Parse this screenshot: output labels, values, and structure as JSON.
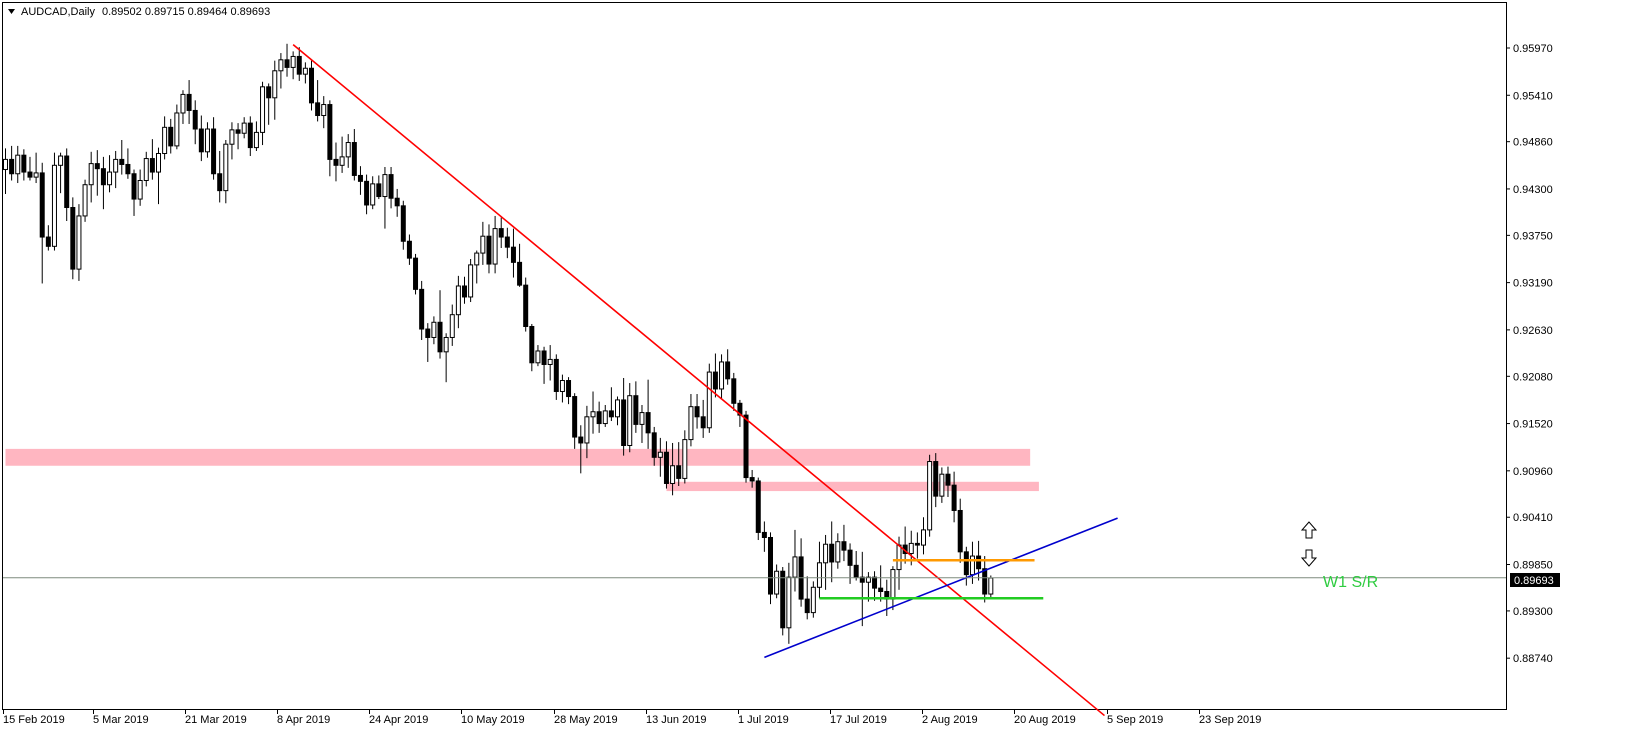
{
  "header": {
    "symbol": "AUDCAD,Daily",
    "ohlc": "0.89502 0.89715 0.89464 0.89693"
  },
  "current_price": "0.89693",
  "annotation": "W1 S/R",
  "colors": {
    "bull": "#ffffff",
    "bear": "#000000",
    "trendline_down": "#ff0000",
    "trendline_up": "#0000cc",
    "zone": "#ffb6c1",
    "level_orange": "#ff9900",
    "level_green": "#22cc22",
    "bid_line": "#7f8c7f"
  },
  "chart_data": {
    "type": "candlestick",
    "title": "AUDCAD,Daily",
    "ylim": [
      0.8857,
      0.9625
    ],
    "y_ticks": [
      "0.95970",
      "0.95410",
      "0.94860",
      "0.94300",
      "0.93750",
      "0.93190",
      "0.92630",
      "0.92080",
      "0.91520",
      "0.90960",
      "0.90410",
      "0.89850",
      "0.89300",
      "0.88740"
    ],
    "x_ticks": [
      "15 Feb 2019",
      "5 Mar 2019",
      "21 Mar 2019",
      "8 Apr 2019",
      "24 Apr 2019",
      "10 May 2019",
      "28 May 2019",
      "13 Jun 2019",
      "1 Jul 2019",
      "17 Jul 2019",
      "2 Aug 2019",
      "20 Aug 2019",
      "5 Sep 2019",
      "23 Sep 2019"
    ],
    "candles": [
      [
        "2019-02-13",
        0.9453,
        0.9478,
        0.9424,
        0.9465
      ],
      [
        "2019-02-14",
        0.9465,
        0.9481,
        0.944,
        0.9448
      ],
      [
        "2019-02-15",
        0.9448,
        0.9481,
        0.9437,
        0.947
      ],
      [
        "2019-02-18",
        0.947,
        0.9477,
        0.944,
        0.945
      ],
      [
        "2019-02-19",
        0.945,
        0.9468,
        0.944,
        0.9444
      ],
      [
        "2019-02-20",
        0.9444,
        0.9473,
        0.9437,
        0.9449
      ],
      [
        "2019-02-21",
        0.9449,
        0.9461,
        0.9318,
        0.9373
      ],
      [
        "2019-02-22",
        0.9373,
        0.9387,
        0.9357,
        0.9362
      ],
      [
        "2019-02-25",
        0.9362,
        0.9473,
        0.9357,
        0.9458
      ],
      [
        "2019-02-26",
        0.9458,
        0.9473,
        0.9425,
        0.9469
      ],
      [
        "2019-02-27",
        0.9469,
        0.9478,
        0.9392,
        0.9408
      ],
      [
        "2019-02-28",
        0.9408,
        0.942,
        0.9323,
        0.9335
      ],
      [
        "2019-03-01",
        0.9335,
        0.9412,
        0.9321,
        0.9398
      ],
      [
        "2019-03-04",
        0.9398,
        0.9441,
        0.9391,
        0.9435
      ],
      [
        "2019-03-05",
        0.9435,
        0.9474,
        0.9414,
        0.946
      ],
      [
        "2019-03-06",
        0.946,
        0.9476,
        0.9422,
        0.9454
      ],
      [
        "2019-03-07",
        0.9454,
        0.9468,
        0.9406,
        0.9435
      ],
      [
        "2019-03-08",
        0.9435,
        0.947,
        0.9426,
        0.945
      ],
      [
        "2019-03-11",
        0.945,
        0.9475,
        0.9431,
        0.9465
      ],
      [
        "2019-03-12",
        0.9465,
        0.9488,
        0.9447,
        0.9459
      ],
      [
        "2019-03-13",
        0.9459,
        0.9478,
        0.9442,
        0.9448
      ],
      [
        "2019-03-14",
        0.9448,
        0.9453,
        0.9398,
        0.9418
      ],
      [
        "2019-03-15",
        0.9418,
        0.9453,
        0.941,
        0.944
      ],
      [
        "2019-03-18",
        0.944,
        0.9474,
        0.9433,
        0.9466
      ],
      [
        "2019-03-19",
        0.9466,
        0.9489,
        0.9441,
        0.945
      ],
      [
        "2019-03-20",
        0.945,
        0.9479,
        0.9412,
        0.9472
      ],
      [
        "2019-03-21",
        0.9472,
        0.9516,
        0.9465,
        0.9503
      ],
      [
        "2019-03-22",
        0.9503,
        0.9513,
        0.9472,
        0.9481
      ],
      [
        "2019-03-25",
        0.9481,
        0.953,
        0.9477,
        0.952
      ],
      [
        "2019-03-26",
        0.952,
        0.9547,
        0.9507,
        0.9542
      ],
      [
        "2019-03-27",
        0.9542,
        0.9559,
        0.9507,
        0.9523
      ],
      [
        "2019-03-28",
        0.9523,
        0.9535,
        0.9483,
        0.9501
      ],
      [
        "2019-03-29",
        0.9501,
        0.9517,
        0.9463,
        0.9474
      ],
      [
        "2019-04-01",
        0.9474,
        0.9509,
        0.9467,
        0.9501
      ],
      [
        "2019-04-02",
        0.9501,
        0.9515,
        0.9441,
        0.9448
      ],
      [
        "2019-04-03",
        0.9448,
        0.9475,
        0.9414,
        0.9428
      ],
      [
        "2019-04-04",
        0.9428,
        0.9488,
        0.9413,
        0.9483
      ],
      [
        "2019-04-05",
        0.9483,
        0.9509,
        0.9465,
        0.95
      ],
      [
        "2019-04-08",
        0.95,
        0.9508,
        0.9477,
        0.9496
      ],
      [
        "2019-04-09",
        0.9496,
        0.9515,
        0.949,
        0.9508
      ],
      [
        "2019-04-10",
        0.9508,
        0.9516,
        0.9469,
        0.9479
      ],
      [
        "2019-04-11",
        0.9479,
        0.951,
        0.9475,
        0.9497
      ],
      [
        "2019-04-12",
        0.9497,
        0.9557,
        0.9482,
        0.9551
      ],
      [
        "2019-04-15",
        0.9551,
        0.9555,
        0.9506,
        0.9538
      ],
      [
        "2019-04-16",
        0.9538,
        0.9582,
        0.9512,
        0.957
      ],
      [
        "2019-04-17",
        0.957,
        0.9591,
        0.9549,
        0.9583
      ],
      [
        "2019-04-18",
        0.9583,
        0.9602,
        0.9563,
        0.9574
      ],
      [
        "2019-04-19",
        0.9574,
        0.9593,
        0.956,
        0.9587
      ],
      [
        "2019-04-22",
        0.9587,
        0.9598,
        0.9558,
        0.9566
      ],
      [
        "2019-04-23",
        0.9566,
        0.958,
        0.9555,
        0.9573
      ],
      [
        "2019-04-24",
        0.9573,
        0.9582,
        0.9523,
        0.9532
      ],
      [
        "2019-04-25",
        0.9532,
        0.9559,
        0.951,
        0.9517
      ],
      [
        "2019-04-26",
        0.9517,
        0.954,
        0.9502,
        0.953
      ],
      [
        "2019-04-29",
        0.953,
        0.9535,
        0.9445,
        0.9465
      ],
      [
        "2019-04-30",
        0.9465,
        0.9485,
        0.9439,
        0.9458
      ],
      [
        "2019-05-01",
        0.9458,
        0.9492,
        0.9449,
        0.9468
      ],
      [
        "2019-05-02",
        0.9468,
        0.9495,
        0.9455,
        0.9485
      ],
      [
        "2019-05-03",
        0.9485,
        0.9501,
        0.944,
        0.9446
      ],
      [
        "2019-05-06",
        0.9446,
        0.9457,
        0.9423,
        0.9439
      ],
      [
        "2019-05-07",
        0.9439,
        0.9447,
        0.94,
        0.9411
      ],
      [
        "2019-05-08",
        0.9411,
        0.9445,
        0.9406,
        0.9436
      ],
      [
        "2019-05-09",
        0.9436,
        0.9446,
        0.9418,
        0.9421
      ],
      [
        "2019-05-10",
        0.9421,
        0.9456,
        0.9383,
        0.9447
      ],
      [
        "2019-05-13",
        0.9447,
        0.9456,
        0.9407,
        0.9419
      ],
      [
        "2019-05-14",
        0.9419,
        0.943,
        0.9397,
        0.941
      ],
      [
        "2019-05-15",
        0.941,
        0.9416,
        0.9358,
        0.9368
      ],
      [
        "2019-05-16",
        0.9368,
        0.9376,
        0.934,
        0.9348
      ],
      [
        "2019-05-17",
        0.9348,
        0.9353,
        0.9305,
        0.9311
      ],
      [
        "2019-05-20",
        0.9311,
        0.9321,
        0.9251,
        0.9264
      ],
      [
        "2019-05-21",
        0.9264,
        0.9271,
        0.9225,
        0.9254
      ],
      [
        "2019-05-22",
        0.9254,
        0.9279,
        0.9246,
        0.9272
      ],
      [
        "2019-05-23",
        0.9272,
        0.931,
        0.9229,
        0.9237
      ],
      [
        "2019-05-24",
        0.9237,
        0.9259,
        0.9201,
        0.9254
      ],
      [
        "2019-05-27",
        0.9254,
        0.9293,
        0.9244,
        0.9281
      ],
      [
        "2019-05-28",
        0.9281,
        0.9327,
        0.9265,
        0.9315
      ],
      [
        "2019-05-29",
        0.9315,
        0.9326,
        0.9294,
        0.9302
      ],
      [
        "2019-05-30",
        0.9302,
        0.9347,
        0.9296,
        0.934
      ],
      [
        "2019-05-31",
        0.934,
        0.9357,
        0.9318,
        0.9354
      ],
      [
        "2019-06-03",
        0.9354,
        0.9391,
        0.934,
        0.9374
      ],
      [
        "2019-06-04",
        0.9374,
        0.9388,
        0.933,
        0.9341
      ],
      [
        "2019-06-05",
        0.9341,
        0.9398,
        0.933,
        0.9383
      ],
      [
        "2019-06-06",
        0.9383,
        0.9396,
        0.936,
        0.9373
      ],
      [
        "2019-06-07",
        0.9373,
        0.9384,
        0.9348,
        0.9361
      ],
      [
        "2019-06-10",
        0.9361,
        0.9383,
        0.9325,
        0.9343
      ],
      [
        "2019-06-11",
        0.9343,
        0.9365,
        0.9314,
        0.9316
      ],
      [
        "2019-06-12",
        0.9316,
        0.9325,
        0.9261,
        0.9267
      ],
      [
        "2019-06-13",
        0.9267,
        0.927,
        0.9214,
        0.9224
      ],
      [
        "2019-06-14",
        0.9224,
        0.9245,
        0.922,
        0.9238
      ],
      [
        "2019-06-17",
        0.9238,
        0.9243,
        0.9199,
        0.9222
      ],
      [
        "2019-06-18",
        0.9222,
        0.9245,
        0.9203,
        0.9228
      ],
      [
        "2019-06-19",
        0.9228,
        0.9234,
        0.918,
        0.919
      ],
      [
        "2019-06-20",
        0.919,
        0.921,
        0.9177,
        0.9203
      ],
      [
        "2019-06-21",
        0.9203,
        0.9207,
        0.9175,
        0.9184
      ],
      [
        "2019-06-24",
        0.9184,
        0.9188,
        0.9122,
        0.9136
      ],
      [
        "2019-06-25",
        0.9136,
        0.915,
        0.9093,
        0.9129
      ],
      [
        "2019-06-26",
        0.9129,
        0.9173,
        0.9111,
        0.916
      ],
      [
        "2019-06-27",
        0.916,
        0.919,
        0.914,
        0.9166
      ],
      [
        "2019-06-28",
        0.9166,
        0.9178,
        0.9141,
        0.9152
      ],
      [
        "2019-07-01",
        0.9152,
        0.9174,
        0.9148,
        0.9167
      ],
      [
        "2019-07-02",
        0.9167,
        0.9195,
        0.9155,
        0.916
      ],
      [
        "2019-07-03",
        0.916,
        0.9184,
        0.915,
        0.918
      ],
      [
        "2019-07-04",
        0.918,
        0.9206,
        0.9114,
        0.9126
      ],
      [
        "2019-07-05",
        0.9126,
        0.92,
        0.9118,
        0.9185
      ],
      [
        "2019-07-08",
        0.9185,
        0.9202,
        0.9141,
        0.9151
      ],
      [
        "2019-07-09",
        0.9151,
        0.9174,
        0.9129,
        0.9165
      ],
      [
        "2019-07-10",
        0.9165,
        0.9204,
        0.9122,
        0.9141
      ],
      [
        "2019-07-11",
        0.9141,
        0.9148,
        0.9102,
        0.9112
      ],
      [
        "2019-07-12",
        0.9112,
        0.9135,
        0.9089,
        0.9118
      ],
      [
        "2019-07-15",
        0.9118,
        0.9131,
        0.9075,
        0.9081
      ],
      [
        "2019-07-16",
        0.9081,
        0.9129,
        0.9067,
        0.9102
      ],
      [
        "2019-07-17",
        0.9102,
        0.913,
        0.9078,
        0.9087
      ],
      [
        "2019-07-18",
        0.9087,
        0.9144,
        0.9081,
        0.9133
      ],
      [
        "2019-07-19",
        0.9133,
        0.9187,
        0.9125,
        0.9172
      ],
      [
        "2019-07-22",
        0.9172,
        0.9187,
        0.9146,
        0.916
      ],
      [
        "2019-07-23",
        0.916,
        0.918,
        0.9135,
        0.9147
      ],
      [
        "2019-07-24",
        0.9147,
        0.9223,
        0.9141,
        0.9213
      ],
      [
        "2019-07-25",
        0.9213,
        0.9235,
        0.9183,
        0.9193
      ],
      [
        "2019-07-26",
        0.9193,
        0.9234,
        0.9181,
        0.9225
      ],
      [
        "2019-07-29",
        0.9225,
        0.924,
        0.9198,
        0.9205
      ],
      [
        "2019-07-30",
        0.9205,
        0.9212,
        0.9167,
        0.9176
      ],
      [
        "2019-07-31",
        0.9176,
        0.918,
        0.9148,
        0.9162
      ],
      [
        "2019-08-01",
        0.9162,
        0.9167,
        0.9082,
        0.9088
      ],
      [
        "2019-08-02",
        0.9088,
        0.9097,
        0.9076,
        0.9084
      ],
      [
        "2019-08-05",
        0.9084,
        0.9088,
        0.9014,
        0.9023
      ],
      [
        "2019-08-06",
        0.9023,
        0.9036,
        0.9,
        0.9017
      ],
      [
        "2019-08-07",
        0.9017,
        0.9023,
        0.8938,
        0.895
      ],
      [
        "2019-08-08",
        0.895,
        0.8985,
        0.8945,
        0.8977
      ],
      [
        "2019-08-09",
        0.8977,
        0.8982,
        0.8901,
        0.891
      ],
      [
        "2019-08-12",
        0.891,
        0.8987,
        0.8891,
        0.897
      ],
      [
        "2019-08-13",
        0.897,
        0.9026,
        0.8953,
        0.8994
      ],
      [
        "2019-08-14",
        0.8994,
        0.9016,
        0.8935,
        0.8944
      ],
      [
        "2019-08-15",
        0.8944,
        0.8971,
        0.892,
        0.8928
      ],
      [
        "2019-08-16",
        0.8928,
        0.8965,
        0.8922,
        0.8958
      ],
      [
        "2019-08-19",
        0.8958,
        0.9012,
        0.8945,
        0.8987
      ],
      [
        "2019-08-20",
        0.8987,
        0.902,
        0.8955,
        0.9009
      ],
      [
        "2019-08-21",
        0.9009,
        0.9036,
        0.8964,
        0.8988
      ],
      [
        "2019-08-22",
        0.8988,
        0.9022,
        0.898,
        0.9012
      ],
      [
        "2019-08-23",
        0.9012,
        0.9032,
        0.8989,
        0.9002
      ],
      [
        "2019-08-26",
        0.9002,
        0.901,
        0.8962,
        0.8984
      ],
      [
        "2019-08-27",
        0.8984,
        0.9001,
        0.8966,
        0.897
      ],
      [
        "2019-08-28",
        0.897,
        0.9,
        0.8912,
        0.8964
      ],
      [
        "2019-08-29",
        0.8964,
        0.8976,
        0.8941,
        0.897
      ],
      [
        "2019-08-30",
        0.897,
        0.8977,
        0.8942,
        0.8957
      ],
      [
        "2019-09-02",
        0.8957,
        0.8984,
        0.8941,
        0.8953
      ],
      [
        "2019-09-03",
        0.8953,
        0.8967,
        0.8924,
        0.8944
      ],
      [
        "2019-09-04",
        0.8944,
        0.8983,
        0.8931,
        0.8979
      ],
      [
        "2019-09-05",
        0.8979,
        0.9018,
        0.8955,
        0.9008
      ],
      [
        "2019-09-06",
        0.9008,
        0.903,
        0.8986,
        0.8998
      ],
      [
        "2019-09-09",
        0.8998,
        0.9025,
        0.8984,
        0.901
      ],
      [
        "2019-09-10",
        0.901,
        0.9023,
        0.8992,
        0.9008
      ],
      [
        "2019-09-11",
        0.9008,
        0.9041,
        0.8997,
        0.9026
      ],
      [
        "2019-09-12",
        0.9026,
        0.9115,
        0.9018,
        0.9107
      ],
      [
        "2019-09-13",
        0.9107,
        0.9117,
        0.9053,
        0.9066
      ],
      [
        "2019-09-16",
        0.9066,
        0.91,
        0.9058,
        0.9092
      ],
      [
        "2019-09-17",
        0.9092,
        0.9101,
        0.9065,
        0.9079
      ],
      [
        "2019-09-18",
        0.9079,
        0.9095,
        0.9035,
        0.9049
      ],
      [
        "2019-09-19",
        0.9049,
        0.9063,
        0.8987,
        0.9
      ],
      [
        "2019-09-20",
        0.9,
        0.9006,
        0.896,
        0.8973
      ],
      [
        "2019-09-23",
        0.8973,
        0.9012,
        0.8962,
        0.8995
      ],
      [
        "2019-09-24",
        0.8995,
        0.9013,
        0.8966,
        0.898
      ],
      [
        "2019-09-25",
        0.898,
        0.8995,
        0.894,
        0.895
      ],
      [
        "2019-09-26",
        0.895,
        0.8972,
        0.8946,
        0.8969
      ]
    ],
    "lines": [
      {
        "name": "downtrend",
        "from": [
          "2019-04-19",
          0.9601
        ],
        "to": [
          "2019-10-22",
          0.8806
        ],
        "color": "#ff0000"
      },
      {
        "name": "uptrend",
        "from": [
          "2019-08-06",
          0.8875
        ],
        "to": [
          "2019-10-25",
          0.904
        ],
        "color": "#0000cc"
      },
      {
        "name": "orange-level",
        "from": [
          "2019-09-04",
          0.899
        ],
        "to": [
          "2019-10-06",
          0.899
        ],
        "color": "#ff9900"
      },
      {
        "name": "green-level",
        "from": [
          "2019-08-19",
          0.8945
        ],
        "to": [
          "2019-10-08",
          0.8945
        ],
        "color": "#22cc22"
      }
    ],
    "zones": [
      {
        "name": "upper-zone",
        "from": "2019-02-13",
        "to": "2019-10-05",
        "low": 0.9102,
        "high": 0.9122
      },
      {
        "name": "lower-zone",
        "from": "2019-07-15",
        "to": "2019-10-07",
        "low": 0.9072,
        "high": 0.9083
      }
    ],
    "bid": 0.89693
  }
}
